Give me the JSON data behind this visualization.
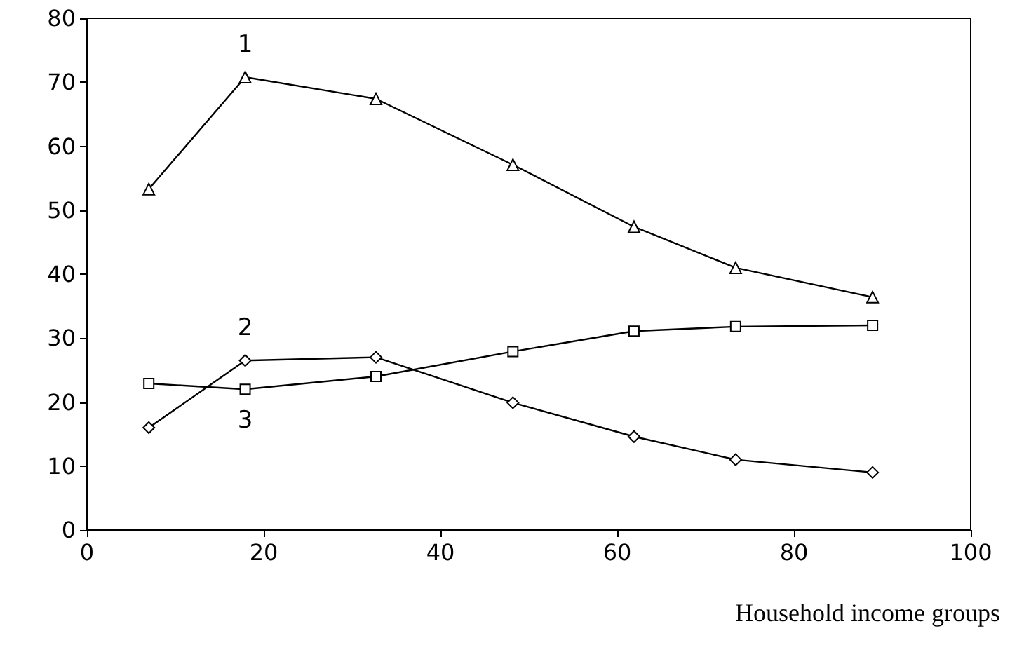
{
  "chart_data": {
    "type": "line",
    "xlabel": "Household income groups",
    "x": [
      7.0,
      17.9,
      32.7,
      48.2,
      61.9,
      73.4,
      88.9
    ],
    "xlim": [
      0,
      100
    ],
    "xticks": [
      0,
      20,
      40,
      60,
      80,
      100
    ],
    "ylim": [
      0,
      80
    ],
    "yticks": [
      0,
      10,
      20,
      30,
      40,
      50,
      60,
      70,
      80
    ],
    "grid": false,
    "legend": false,
    "line_style": "solid",
    "series": [
      {
        "name": "1",
        "color": "#000000",
        "marker": "triangle",
        "values": [
          53.3,
          70.8,
          67.4,
          57.1,
          47.4,
          41.0,
          36.4
        ]
      },
      {
        "name": "2",
        "color": "#000000",
        "marker": "diamond",
        "values": [
          16.0,
          26.5,
          27.0,
          19.9,
          14.6,
          11.0,
          9.0
        ]
      },
      {
        "name": "3",
        "color": "#000000",
        "marker": "square",
        "values": [
          22.9,
          22.0,
          24.0,
          27.9,
          31.1,
          31.8,
          32.0
        ]
      }
    ]
  }
}
